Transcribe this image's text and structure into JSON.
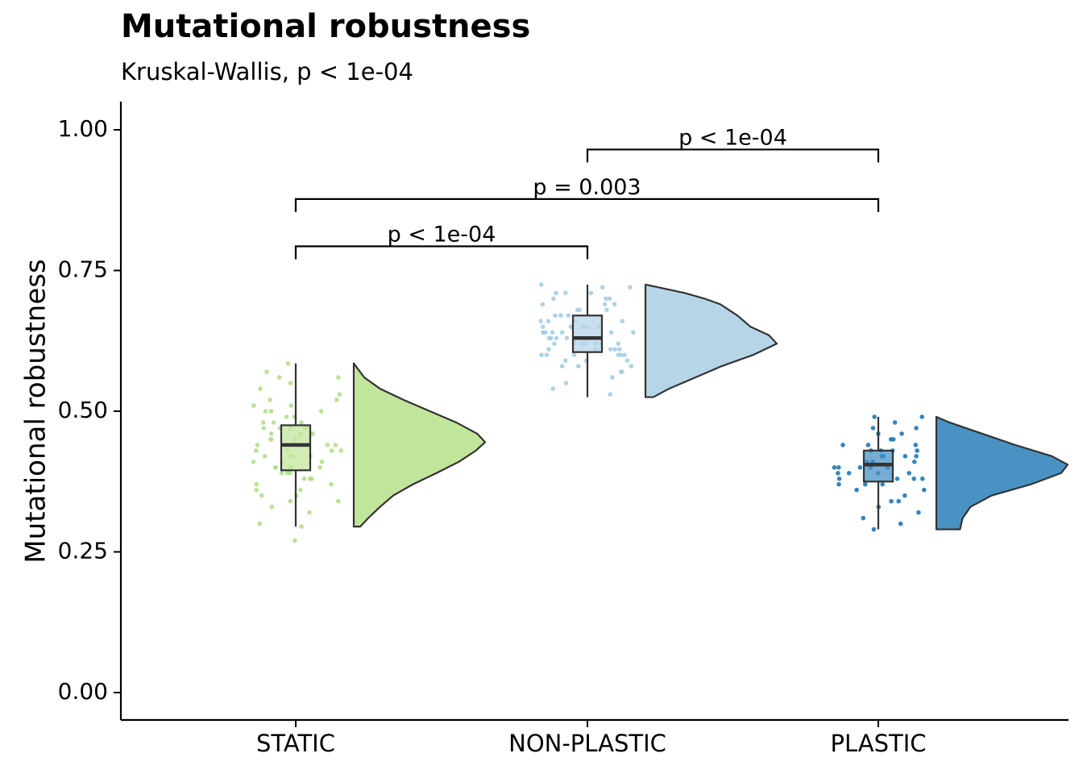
{
  "chart_data": {
    "type": "raincloud",
    "title": "Mutational robustness",
    "subtitle": "Kruskal-Wallis, p < 1e-04",
    "ylabel": "Mutational robustness",
    "xlabel": "",
    "ylim": [
      -0.05,
      1.05
    ],
    "yticks": [
      0,
      0.25,
      0.5,
      0.75,
      1.0
    ],
    "ytick_labels": [
      "0.00",
      "0.25",
      "0.50",
      "0.75",
      "1.00"
    ],
    "grid": false,
    "legend": "none",
    "categories": [
      "STATIC",
      "NON-PLASTIC",
      "PLASTIC"
    ],
    "colors": {
      "STATIC": "#c2e59c",
      "NON-PLASTIC": "#b6d6e8",
      "PLASTIC": "#4a92c3",
      "STATIC_points": "#b2df8a",
      "NON-PLASTIC_points": "#a6cee3",
      "PLASTIC_points": "#1f78b4",
      "axis": "#000000",
      "outline": "#333333"
    },
    "boxes": [
      {
        "group": "STATIC",
        "whisker_low": 0.295,
        "q1": 0.395,
        "median": 0.44,
        "q3": 0.475,
        "whisker_high": 0.585
      },
      {
        "group": "NON-PLASTIC",
        "whisker_low": 0.525,
        "q1": 0.605,
        "median": 0.63,
        "q3": 0.67,
        "whisker_high": 0.725
      },
      {
        "group": "PLASTIC",
        "whisker_low": 0.29,
        "q1": 0.375,
        "median": 0.405,
        "q3": 0.43,
        "whisker_high": 0.49
      }
    ],
    "densities": [
      {
        "group": "STATIC",
        "min": 0.295,
        "max": 0.585,
        "profile": [
          [
            0.295,
            0.05
          ],
          [
            0.31,
            0.11
          ],
          [
            0.33,
            0.2
          ],
          [
            0.35,
            0.3
          ],
          [
            0.37,
            0.45
          ],
          [
            0.39,
            0.63
          ],
          [
            0.41,
            0.8
          ],
          [
            0.43,
            0.93
          ],
          [
            0.445,
            1.0
          ],
          [
            0.46,
            0.94
          ],
          [
            0.48,
            0.78
          ],
          [
            0.5,
            0.58
          ],
          [
            0.52,
            0.38
          ],
          [
            0.54,
            0.2
          ],
          [
            0.56,
            0.08
          ],
          [
            0.585,
            0.0
          ]
        ]
      },
      {
        "group": "NON-PLASTIC",
        "min": 0.525,
        "max": 0.725,
        "profile": [
          [
            0.525,
            0.06
          ],
          [
            0.54,
            0.18
          ],
          [
            0.56,
            0.38
          ],
          [
            0.58,
            0.58
          ],
          [
            0.6,
            0.82
          ],
          [
            0.62,
            1.0
          ],
          [
            0.635,
            0.94
          ],
          [
            0.65,
            0.8
          ],
          [
            0.67,
            0.7
          ],
          [
            0.69,
            0.57
          ],
          [
            0.7,
            0.45
          ],
          [
            0.71,
            0.3
          ],
          [
            0.725,
            0.0
          ]
        ]
      },
      {
        "group": "PLASTIC",
        "min": 0.29,
        "max": 0.49,
        "profile": [
          [
            0.29,
            0.18
          ],
          [
            0.31,
            0.2
          ],
          [
            0.33,
            0.26
          ],
          [
            0.35,
            0.42
          ],
          [
            0.37,
            0.72
          ],
          [
            0.39,
            0.95
          ],
          [
            0.405,
            1.0
          ],
          [
            0.42,
            0.88
          ],
          [
            0.44,
            0.6
          ],
          [
            0.46,
            0.35
          ],
          [
            0.48,
            0.1
          ],
          [
            0.49,
            0.0
          ]
        ]
      }
    ],
    "points": [
      {
        "group": "STATIC",
        "y": [
          0.27,
          0.295,
          0.3,
          0.33,
          0.34,
          0.35,
          0.36,
          0.37,
          0.38,
          0.39,
          0.4,
          0.41,
          0.42,
          0.43,
          0.44,
          0.45,
          0.46,
          0.47,
          0.48,
          0.49,
          0.5,
          0.51,
          0.52,
          0.53,
          0.54,
          0.55,
          0.56,
          0.57,
          0.585,
          0.36,
          0.38,
          0.4,
          0.42,
          0.43,
          0.44,
          0.45,
          0.46,
          0.47,
          0.48,
          0.5,
          0.41,
          0.39,
          0.37,
          0.44,
          0.46,
          0.43,
          0.42,
          0.45,
          0.47,
          0.49,
          0.4,
          0.38,
          0.35,
          0.52,
          0.51,
          0.44,
          0.41,
          0.43,
          0.46,
          0.32,
          0.34,
          0.56,
          0.47,
          0.45,
          0.42,
          0.44,
          0.4,
          0.39,
          0.48,
          0.5
        ]
      },
      {
        "group": "NON-PLASTIC",
        "y": [
          0.53,
          0.54,
          0.55,
          0.56,
          0.57,
          0.58,
          0.59,
          0.6,
          0.61,
          0.62,
          0.63,
          0.64,
          0.65,
          0.66,
          0.67,
          0.68,
          0.69,
          0.7,
          0.71,
          0.72,
          0.725,
          0.6,
          0.61,
          0.62,
          0.63,
          0.64,
          0.65,
          0.66,
          0.62,
          0.63,
          0.64,
          0.61,
          0.6,
          0.59,
          0.65,
          0.67,
          0.68,
          0.7,
          0.72,
          0.57,
          0.58,
          0.62,
          0.63,
          0.64,
          0.66,
          0.69,
          0.71,
          0.6,
          0.61,
          0.62,
          0.65,
          0.64,
          0.63,
          0.59,
          0.6,
          0.62,
          0.64,
          0.67,
          0.69,
          0.7,
          0.71,
          0.66,
          0.65,
          0.61,
          0.58,
          0.63,
          0.62,
          0.68,
          0.6,
          0.64
        ]
      },
      {
        "group": "PLASTIC",
        "y": [
          0.29,
          0.3,
          0.31,
          0.32,
          0.34,
          0.34,
          0.36,
          0.37,
          0.37,
          0.38,
          0.38,
          0.39,
          0.39,
          0.4,
          0.4,
          0.4,
          0.41,
          0.41,
          0.42,
          0.42,
          0.43,
          0.43,
          0.44,
          0.44,
          0.45,
          0.46,
          0.47,
          0.48,
          0.49,
          0.49,
          0.41,
          0.4,
          0.39,
          0.38,
          0.42,
          0.43,
          0.37,
          0.36,
          0.45,
          0.39,
          0.41,
          0.4,
          0.38,
          0.42,
          0.43,
          0.44,
          0.46,
          0.35,
          0.33,
          0.47
        ]
      }
    ],
    "comparisons": [
      {
        "from": "STATIC",
        "to": "NON-PLASTIC",
        "y": 0.793,
        "label": "p < 1e-04"
      },
      {
        "from": "STATIC",
        "to": "PLASTIC",
        "y": 0.877,
        "label": "p = 0.003"
      },
      {
        "from": "NON-PLASTIC",
        "to": "PLASTIC",
        "y": 0.965,
        "label": "p < 1e-04"
      }
    ]
  }
}
